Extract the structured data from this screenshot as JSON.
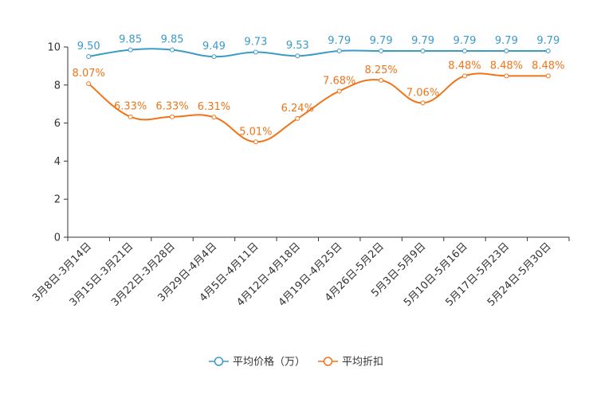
{
  "chart_data": {
    "type": "line",
    "title": "",
    "xlabel": "",
    "ylabel": "",
    "ylim": [
      0,
      10
    ],
    "yticks": [
      0,
      2,
      4,
      6,
      8,
      10
    ],
    "grid": false,
    "legend_position": "bottom-center",
    "categories": [
      "3月8日-3月14日",
      "3月15日-3月21日",
      "3月22日-3月28日",
      "3月29日-4月4日",
      "4月5日-4月11日",
      "4月12日-4月18日",
      "4月19日-4月25日",
      "4月26日-5月2日",
      "5月3日-5月9日",
      "5月10日-5月16日",
      "5月17日-5月23日",
      "5月24日-5月30日"
    ],
    "series": [
      {
        "name": "平均价格（万）",
        "color": "#3a9bc9",
        "values": [
          9.5,
          9.85,
          9.85,
          9.49,
          9.73,
          9.53,
          9.79,
          9.79,
          9.79,
          9.79,
          9.79,
          9.79
        ],
        "labels": [
          "9.50",
          "9.85",
          "9.85",
          "9.49",
          "9.73",
          "9.53",
          "9.79",
          "9.79",
          "9.79",
          "9.79",
          "9.79",
          "9.79"
        ]
      },
      {
        "name": "平均折扣",
        "color": "#f07418",
        "values": [
          8.07,
          6.33,
          6.33,
          6.31,
          5.01,
          6.24,
          7.68,
          8.25,
          7.06,
          8.48,
          8.48,
          8.48
        ],
        "labels": [
          "8.07%",
          "6.33%",
          "6.33%",
          "6.31%",
          "5.01%",
          "6.24%",
          "7.68%",
          "8.25%",
          "7.06%",
          "8.48%",
          "8.48%",
          "8.48%"
        ]
      }
    ]
  }
}
